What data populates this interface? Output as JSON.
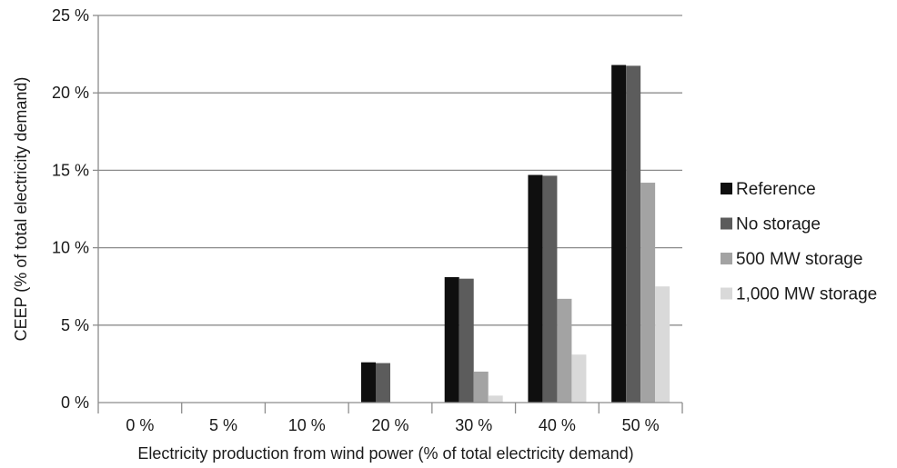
{
  "chart_data": {
    "type": "bar",
    "title": "",
    "xlabel": "Electricity production from wind power (% of total electricity demand)",
    "ylabel": "CEEP (% of total electricity demand)",
    "categories": [
      "0 %",
      "5 %",
      "10 %",
      "20 %",
      "30 %",
      "40 %",
      "50 %"
    ],
    "yticks": [
      "0 %",
      "5 %",
      "10 %",
      "15 %",
      "20 %",
      "25 %"
    ],
    "ylim": [
      0,
      25
    ],
    "grid": true,
    "legend_position": "right",
    "series": [
      {
        "name": "Reference",
        "color": "#0f0f0f",
        "values": [
          0,
          0,
          0,
          2.6,
          8.1,
          14.7,
          21.8
        ]
      },
      {
        "name": "No storage",
        "color": "#5c5c5c",
        "values": [
          0,
          0,
          0,
          2.55,
          8.0,
          14.65,
          21.75
        ]
      },
      {
        "name": "500 MW storage",
        "color": "#a3a3a3",
        "values": [
          0,
          0,
          0,
          0,
          2.0,
          6.7,
          14.2
        ]
      },
      {
        "name": "1,000 MW storage",
        "color": "#d9d9d9",
        "values": [
          0,
          0,
          0,
          0,
          0.45,
          3.1,
          7.5
        ]
      }
    ]
  }
}
